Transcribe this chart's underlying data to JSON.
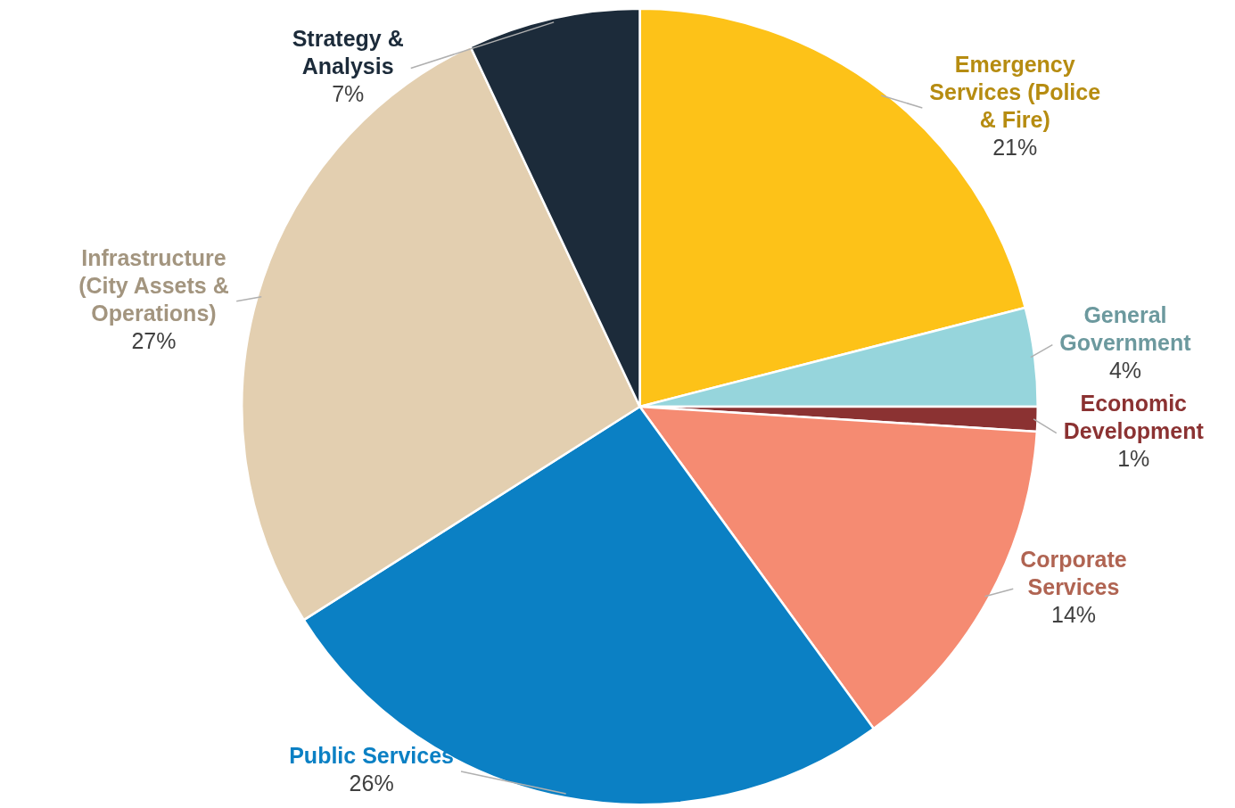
{
  "chart_data": {
    "type": "pie",
    "categories": [
      "Emergency Services (Police & Fire)",
      "General Government",
      "Economic Development",
      "Corporate Services",
      "Public Services",
      "Infrastructure (City Assets & Operations)",
      "Strategy & Analysis"
    ],
    "values": [
      21,
      4,
      1,
      14,
      26,
      27,
      7
    ],
    "value_labels": [
      "21%",
      "4%",
      "1%",
      "14%",
      "26%",
      "27%",
      "7%"
    ],
    "colors": [
      "#fdc218",
      "#96d5dc",
      "#8b3232",
      "#f58b72",
      "#0b80c4",
      "#e3cfb0",
      "#1c2b3a"
    ]
  }
}
